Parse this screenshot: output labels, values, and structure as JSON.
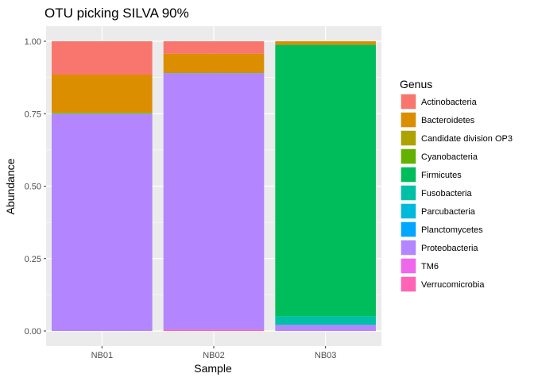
{
  "chart_data": {
    "type": "bar",
    "stacked": true,
    "title": "OTU picking SILVA 90%",
    "xlabel": "Sample",
    "ylabel": "Abundance",
    "ylim": [
      0,
      1
    ],
    "yticks": [
      "0.00",
      "0.25",
      "0.50",
      "0.75",
      "1.00"
    ],
    "categories": [
      "NB01",
      "NB02",
      "NB03"
    ],
    "legend_title": "Genus",
    "legend_position": "right",
    "grid": true,
    "series": [
      {
        "name": "Actinobacteria",
        "color": "#F8766D",
        "values": [
          0.115,
          0.043,
          0.0
        ]
      },
      {
        "name": "Bacteroidetes",
        "color": "#DB8E00",
        "values": [
          0.13,
          0.065,
          0.012
        ]
      },
      {
        "name": "Candidate division OP3",
        "color": "#AEA200",
        "values": [
          0.002,
          0.0,
          0.0
        ]
      },
      {
        "name": "Cyanobacteria",
        "color": "#64B200",
        "values": [
          0.003,
          0.002,
          0.0
        ]
      },
      {
        "name": "Firmicutes",
        "color": "#00BD5C",
        "values": [
          0.0,
          0.0,
          0.937
        ]
      },
      {
        "name": "Fusobacteria",
        "color": "#00C1A7",
        "values": [
          0.0,
          0.0,
          0.03
        ]
      },
      {
        "name": "Parcubacteria",
        "color": "#00BADE",
        "values": [
          0.0,
          0.0,
          0.0
        ]
      },
      {
        "name": "Planctomycetes",
        "color": "#00A6FF",
        "values": [
          0.0,
          0.0,
          0.0
        ]
      },
      {
        "name": "Proteobacteria",
        "color": "#B385FF",
        "values": [
          0.75,
          0.885,
          0.021
        ]
      },
      {
        "name": "TM6",
        "color": "#EF67EB",
        "values": [
          0.0,
          0.0,
          0.0
        ]
      },
      {
        "name": "Verrucomicrobia",
        "color": "#FF63B6",
        "values": [
          0.0,
          0.005,
          0.0
        ]
      }
    ]
  }
}
